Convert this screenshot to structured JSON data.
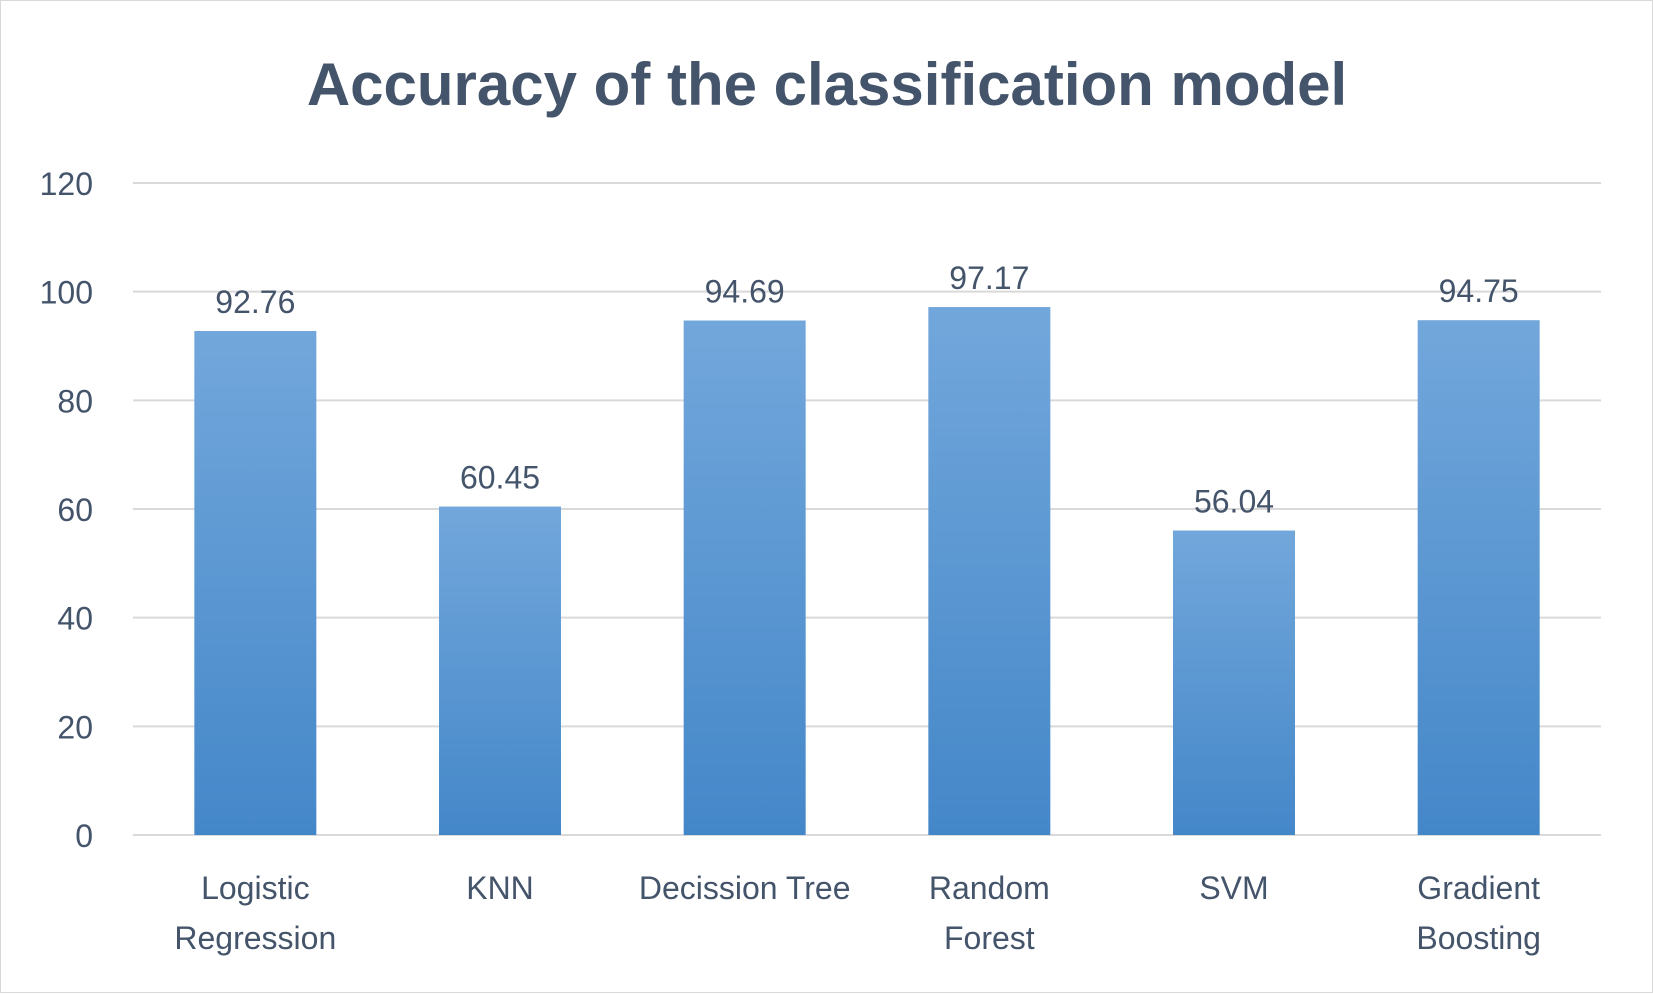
{
  "chart_data": {
    "type": "bar",
    "title": "Accuracy of the classification model",
    "xlabel": "",
    "ylabel": "",
    "categories": [
      [
        "Logistic",
        "Regression"
      ],
      [
        "KNN"
      ],
      [
        "Decission Tree"
      ],
      [
        "Random",
        "Forest"
      ],
      [
        "SVM"
      ],
      [
        "Gradient",
        "Boosting"
      ]
    ],
    "values": [
      92.76,
      60.45,
      94.69,
      97.17,
      56.04,
      94.75
    ],
    "data_labels": [
      "92.76",
      "60.45",
      "94.69",
      "97.17",
      "56.04",
      "94.75"
    ],
    "ylim": [
      0,
      120
    ],
    "yticks": [
      0,
      20,
      40,
      60,
      80,
      100,
      120
    ],
    "ytick_labels": [
      "0",
      "20",
      "40",
      "60",
      "80",
      "100",
      "120"
    ],
    "grid": true,
    "legend": "none",
    "colors": {
      "bar_top": "#72a7db",
      "bar_bottom": "#4487c9",
      "text": "#44546a",
      "grid": "#d9d9d9"
    }
  }
}
